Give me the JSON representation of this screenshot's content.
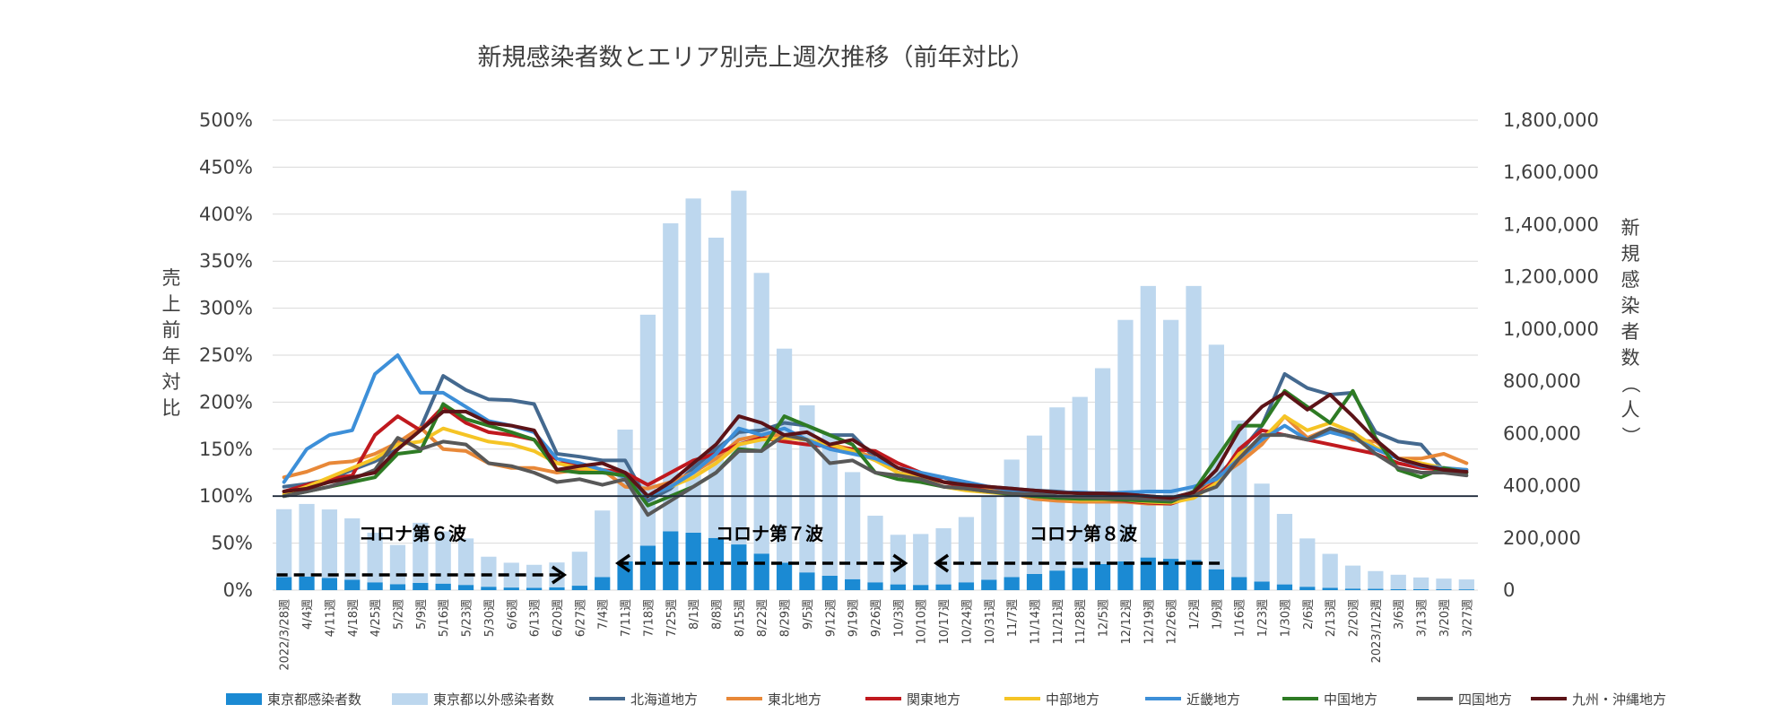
{
  "chart_data": {
    "type": "bar+line",
    "title": "新規感染者数とエリア別売上週次推移（前年対比）",
    "ylabel_left": "売上前年対比",
    "ylabel_right": "新規感染者数（人）",
    "ylim_left": [
      0,
      500
    ],
    "ylim_right": [
      0,
      1800000
    ],
    "left_ticks": [
      "0%",
      "50%",
      "100%",
      "150%",
      "200%",
      "250%",
      "300%",
      "350%",
      "400%",
      "450%",
      "500%"
    ],
    "right_ticks": [
      "0",
      "200,000",
      "400,000",
      "600,000",
      "800,000",
      "1,000,000",
      "1,200,000",
      "1,400,000",
      "1,600,000",
      "1,800,000"
    ],
    "reference_line": 100,
    "categories": [
      "2022/3/28週",
      "4/4週",
      "4/11週",
      "4/18週",
      "4/25週",
      "5/2週",
      "5/9週",
      "5/16週",
      "5/23週",
      "5/30週",
      "6/6週",
      "6/13週",
      "6/20週",
      "6/27週",
      "7/4週",
      "7/11週",
      "7/18週",
      "7/25週",
      "8/1週",
      "8/8週",
      "8/15週",
      "8/22週",
      "8/29週",
      "9/5週",
      "9/12週",
      "9/19週",
      "9/26週",
      "10/3週",
      "10/10週",
      "10/17週",
      "10/24週",
      "10/31週",
      "11/7週",
      "11/14週",
      "11/21週",
      "11/28週",
      "12/5週",
      "12/12週",
      "12/19週",
      "12/26週",
      "1/2週",
      "1/9週",
      "1/16週",
      "1/23週",
      "1/30週",
      "2/6週",
      "2/13週",
      "2/20週",
      "2023/1/2週",
      "3/6週",
      "3/13週",
      "3/20週",
      "3/27週"
    ],
    "bars": [
      {
        "name": "東京都感染者数",
        "color": "#1b8ad3",
        "values": [
          50000,
          52000,
          47000,
          40000,
          30000,
          23000,
          28000,
          25000,
          20000,
          13000,
          10000,
          9000,
          11000,
          17000,
          50000,
          110000,
          170000,
          225000,
          220000,
          200000,
          175000,
          140000,
          105000,
          68000,
          55000,
          42000,
          30000,
          22000,
          20000,
          22000,
          30000,
          40000,
          50000,
          62000,
          75000,
          85000,
          100000,
          110000,
          125000,
          120000,
          115000,
          80000,
          50000,
          33000,
          22000,
          13000,
          9000,
          6000,
          5000,
          4000,
          3500,
          3200,
          3000
        ]
      },
      {
        "name": "東京都以外感染者数",
        "color": "#bdd7ee",
        "values": [
          260000,
          278000,
          262000,
          235000,
          190000,
          150000,
          230000,
          200000,
          178000,
          115000,
          95000,
          88000,
          95000,
          130000,
          255000,
          505000,
          885000,
          1180000,
          1280000,
          1150000,
          1355000,
          1075000,
          820000,
          640000,
          545000,
          410000,
          255000,
          190000,
          195000,
          215000,
          250000,
          320000,
          450000,
          530000,
          625000,
          655000,
          750000,
          925000,
          1040000,
          915000,
          1050000,
          860000,
          600000,
          375000,
          270000,
          185000,
          130000,
          88000,
          68000,
          55000,
          45000,
          41000,
          38000
        ]
      }
    ],
    "series": [
      {
        "name": "北海道地方",
        "color": "#44698f",
        "values": [
          110,
          113,
          118,
          128,
          137,
          150,
          172,
          228,
          213,
          203,
          202,
          198,
          145,
          142,
          138,
          138,
          95,
          108,
          130,
          150,
          168,
          170,
          178,
          175,
          165,
          165,
          140,
          125,
          120,
          120,
          112,
          110,
          108,
          106,
          105,
          103,
          102,
          102,
          100,
          98,
          104,
          120,
          145,
          175,
          230,
          215,
          208,
          210,
          168,
          158,
          155,
          127,
          125
        ]
      },
      {
        "name": "東北地方",
        "color": "#e88838",
        "values": [
          120,
          126,
          135,
          137,
          145,
          157,
          173,
          150,
          148,
          135,
          130,
          130,
          125,
          128,
          128,
          110,
          108,
          115,
          125,
          140,
          160,
          165,
          165,
          160,
          155,
          150,
          140,
          130,
          120,
          115,
          110,
          108,
          103,
          97,
          95,
          94,
          94,
          94,
          92,
          92,
          100,
          118,
          135,
          155,
          185,
          162,
          172,
          160,
          158,
          140,
          140,
          145,
          135
        ]
      },
      {
        "name": "関東地方",
        "color": "#c0191e",
        "values": [
          105,
          112,
          118,
          122,
          165,
          185,
          170,
          195,
          178,
          168,
          165,
          160,
          135,
          135,
          128,
          125,
          112,
          125,
          138,
          145,
          155,
          162,
          158,
          155,
          153,
          150,
          148,
          135,
          125,
          115,
          110,
          105,
          103,
          100,
          98,
          97,
          96,
          95,
          93,
          92,
          100,
          115,
          150,
          170,
          165,
          160,
          155,
          150,
          145,
          135,
          130,
          128,
          128
        ]
      },
      {
        "name": "中部地方",
        "color": "#f5c425",
        "values": [
          102,
          110,
          120,
          130,
          140,
          155,
          158,
          172,
          165,
          158,
          155,
          148,
          135,
          130,
          128,
          120,
          100,
          110,
          120,
          135,
          155,
          160,
          162,
          160,
          155,
          148,
          138,
          125,
          118,
          110,
          106,
          104,
          102,
          100,
          98,
          96,
          96,
          96,
          94,
          93,
          98,
          114,
          145,
          160,
          185,
          170,
          178,
          168,
          152,
          140,
          135,
          130,
          128
        ]
      },
      {
        "name": "近畿地方",
        "color": "#3d8fd8",
        "values": [
          115,
          150,
          165,
          170,
          230,
          250,
          210,
          210,
          195,
          180,
          175,
          168,
          140,
          135,
          128,
          120,
          100,
          110,
          125,
          145,
          172,
          165,
          172,
          160,
          150,
          145,
          140,
          130,
          125,
          120,
          115,
          110,
          106,
          105,
          104,
          104,
          103,
          104,
          105,
          105,
          110,
          118,
          140,
          160,
          175,
          160,
          168,
          162,
          150,
          140,
          132,
          130,
          128
        ]
      },
      {
        "name": "中国地方",
        "color": "#2e7b24",
        "values": [
          100,
          105,
          110,
          115,
          120,
          145,
          148,
          198,
          182,
          175,
          168,
          160,
          128,
          125,
          125,
          122,
          90,
          100,
          110,
          125,
          150,
          148,
          185,
          175,
          165,
          155,
          125,
          118,
          115,
          110,
          108,
          105,
          102,
          100,
          98,
          97,
          97,
          96,
          95,
          94,
          105,
          140,
          175,
          175,
          212,
          195,
          178,
          212,
          162,
          128,
          120,
          130,
          125
        ]
      },
      {
        "name": "四国地方",
        "color": "#585858",
        "values": [
          100,
          105,
          110,
          118,
          128,
          162,
          150,
          158,
          155,
          135,
          132,
          125,
          115,
          118,
          112,
          118,
          80,
          95,
          110,
          125,
          148,
          148,
          165,
          160,
          135,
          138,
          125,
          122,
          118,
          110,
          108,
          105,
          103,
          102,
          100,
          99,
          98,
          98,
          97,
          96,
          101,
          110,
          140,
          165,
          165,
          160,
          172,
          165,
          145,
          130,
          125,
          125,
          122
        ]
      },
      {
        "name": "九州・沖縄地方",
        "color": "#5c1317",
        "values": [
          105,
          108,
          115,
          120,
          125,
          150,
          170,
          190,
          190,
          178,
          175,
          170,
          128,
          132,
          135,
          125,
          100,
          115,
          135,
          155,
          185,
          178,
          165,
          168,
          155,
          160,
          145,
          130,
          122,
          115,
          112,
          110,
          108,
          106,
          104,
          103,
          103,
          102,
          100,
          98,
          104,
          128,
          170,
          195,
          210,
          192,
          208,
          185,
          160,
          140,
          133,
          128,
          126
        ]
      }
    ],
    "annotations": [
      {
        "text": "コロナ第６波",
        "direction": "right",
        "from": "2022/3/28週",
        "to": "6/20週"
      },
      {
        "text": "コロナ第７波",
        "direction": "both",
        "from": "7/11週",
        "to": "10/3週"
      },
      {
        "text": "コロナ第８波",
        "direction": "left",
        "from": "10/17週",
        "to": "1/9週"
      }
    ],
    "legend_position": "bottom"
  }
}
